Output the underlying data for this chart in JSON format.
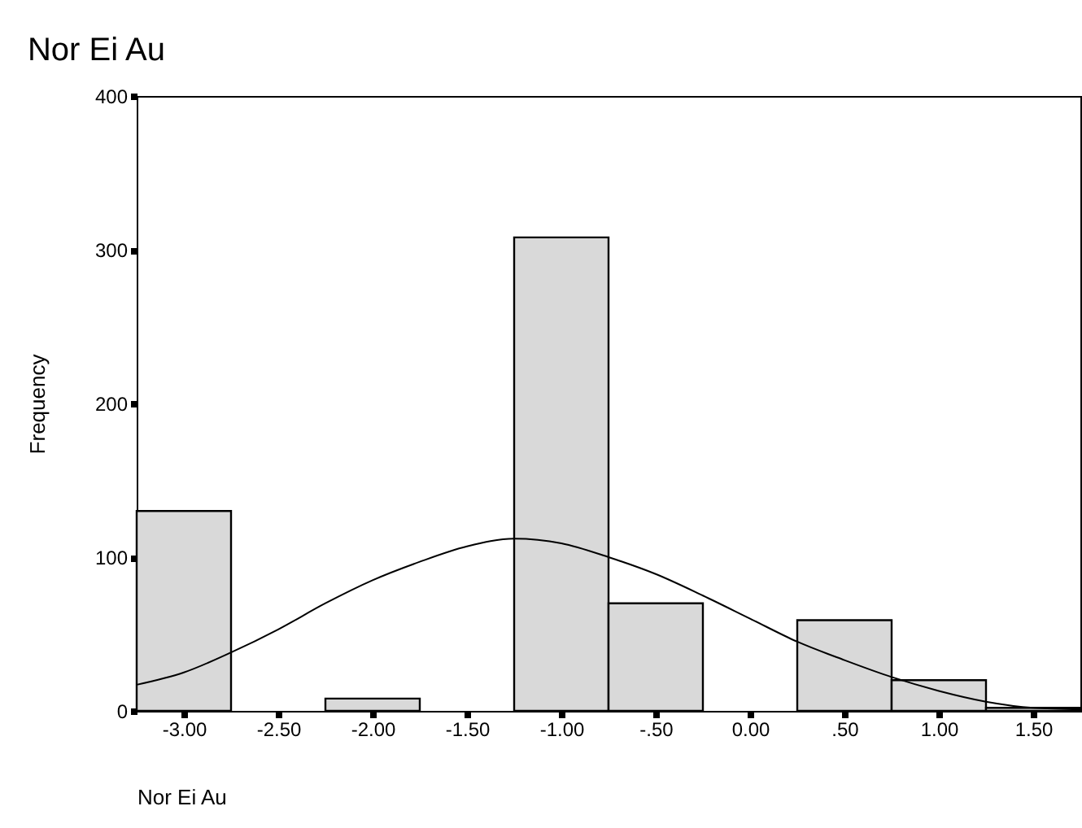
{
  "chart_data": {
    "type": "histogram",
    "title": "Nor Ei Au",
    "xlabel": "Nor Ei Au",
    "ylabel": "Frequency",
    "bins": [
      -3.25,
      -2.75,
      -2.25,
      -1.75,
      -1.25,
      -0.75,
      -0.25,
      0.25,
      0.75,
      1.25,
      1.75
    ],
    "values": [
      130,
      0,
      8,
      0,
      308,
      70,
      0,
      59,
      20,
      2
    ],
    "color": "#d9d9d9",
    "series": [
      {
        "type": "line",
        "color": "#000000",
        "x": [
          -3.25,
          -3.0,
          -2.75,
          -2.5,
          -2.25,
          -2.0,
          -1.75,
          -1.5,
          -1.25,
          -1.0,
          -0.75,
          -0.5,
          -0.25,
          0.0,
          0.25,
          0.5,
          0.75,
          1.0,
          1.25,
          1.5,
          1.75
        ],
        "values": [
          17,
          25,
          38,
          53,
          70,
          85,
          97,
          107,
          112,
          109,
          100,
          89,
          75,
          60,
          45,
          33,
          22,
          13,
          6,
          2,
          1
        ]
      }
    ],
    "xlim": [
      -3.25,
      1.75
    ],
    "xticks": [
      {
        "value": -3,
        "label": "-3.00"
      },
      {
        "value": -2.5,
        "label": "-2.50"
      },
      {
        "value": -2,
        "label": "-2.00"
      },
      {
        "value": -1.5,
        "label": "-1.50"
      },
      {
        "value": -1,
        "label": "-1.00"
      },
      {
        "value": -0.5,
        "label": "-.50"
      },
      {
        "value": 0,
        "label": "0.00"
      },
      {
        "value": 0.5,
        "label": ".50"
      },
      {
        "value": 1,
        "label": "1.00"
      },
      {
        "value": 1.5,
        "label": "1.50"
      }
    ],
    "ylim": [
      0,
      400
    ],
    "yticks": [
      0,
      100,
      200,
      300,
      400
    ]
  }
}
